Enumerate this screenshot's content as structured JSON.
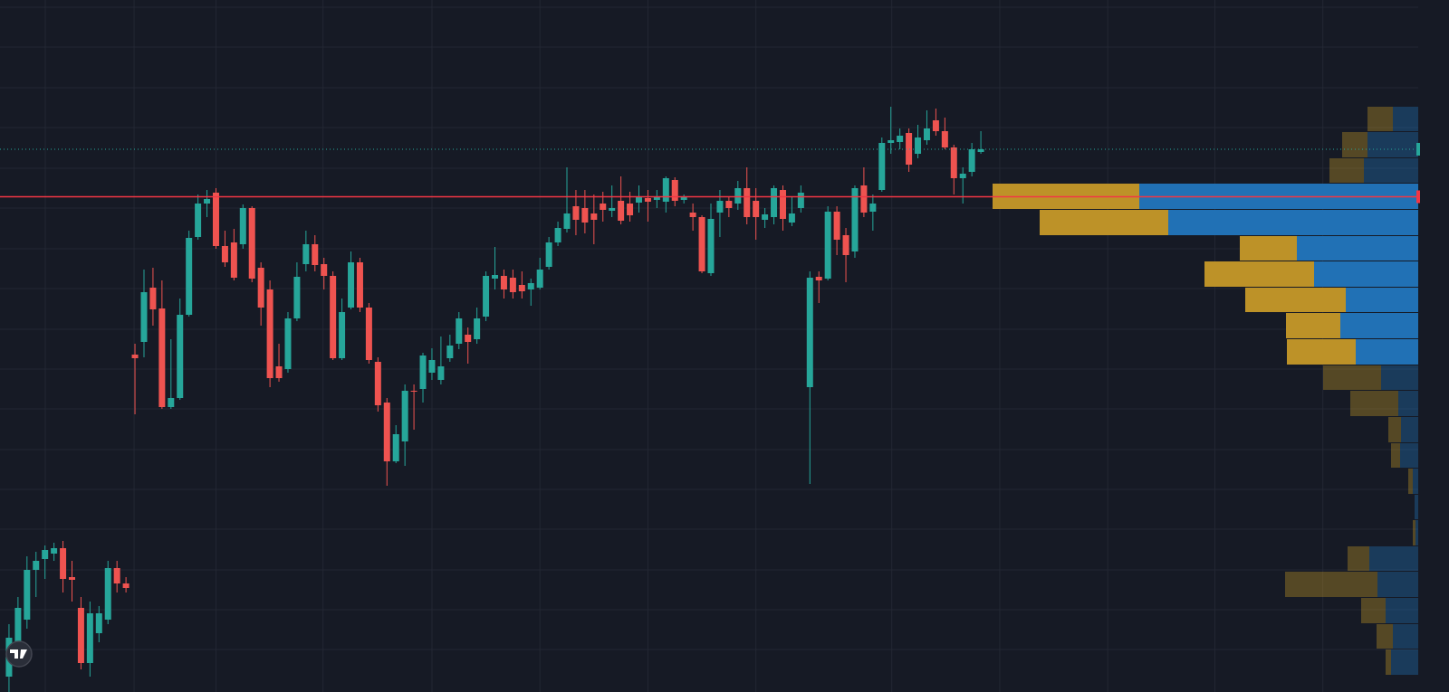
{
  "chart_data": {
    "type": "candlestick",
    "xlim": [
      -1,
      156.6
    ],
    "ylim": [
      0,
      765
    ],
    "x_gridlines": [
      4.03,
      13.9,
      23.0,
      34.9,
      47.0,
      59.0,
      71.0,
      83.0,
      98.1,
      110.1,
      122.1,
      134.0,
      146.0
    ],
    "y_gridlines": [
      47,
      91,
      135,
      180,
      224,
      268,
      313,
      357,
      401,
      446,
      490,
      535,
      579,
      624,
      668,
      713,
      757
    ],
    "up_color": "#26a69a",
    "down_color": "#ef5350",
    "x": [
      0,
      1,
      2,
      3,
      4,
      5,
      6,
      7,
      8,
      9,
      10,
      11,
      12,
      13,
      14,
      15,
      16,
      17,
      18,
      19,
      20,
      21,
      22,
      23,
      24,
      25,
      26,
      27,
      28,
      29,
      30,
      31,
      32,
      33,
      34,
      35,
      36,
      37,
      38,
      39,
      40,
      41,
      42,
      43,
      44,
      45,
      46,
      47,
      48,
      49,
      50,
      51,
      52,
      53,
      54,
      55,
      56,
      57,
      58,
      59,
      60,
      61,
      62,
      63,
      64,
      65,
      66,
      67,
      68,
      69,
      70,
      71,
      72,
      73,
      74,
      75,
      76,
      77,
      78,
      79,
      80,
      81,
      82,
      83,
      84,
      85,
      86,
      87,
      88,
      89,
      90,
      91,
      92,
      93,
      94,
      95,
      96,
      97,
      98,
      99,
      100,
      101,
      102,
      103,
      104,
      105,
      106,
      107,
      108
    ],
    "open": [
      17,
      55,
      80,
      135,
      147,
      153,
      159,
      127,
      93,
      32,
      65,
      80,
      137,
      120,
      373,
      387,
      447,
      424,
      315,
      325,
      417,
      503,
      540,
      552,
      493,
      497,
      495,
      535,
      469,
      445,
      360,
      357,
      413,
      473,
      495,
      473,
      460,
      369,
      425,
      475,
      425,
      365,
      320,
      255,
      277,
      333,
      335,
      353,
      345,
      369,
      385,
      395,
      390,
      415,
      457,
      460,
      458,
      450,
      445,
      447,
      470,
      497,
      512,
      537,
      535,
      529,
      540,
      532,
      543,
      540,
      541,
      546,
      544,
      542,
      566,
      544,
      530,
      525,
      463,
      530,
      543,
      540,
      557,
      543,
      522,
      525,
      555,
      519,
      535,
      337,
      459,
      457,
      531,
      505,
      487,
      560,
      531,
      555,
      607,
      608,
      618,
      595,
      610,
      632,
      620,
      602,
      568,
      575,
      597
    ],
    "high": [
      75,
      105,
      150,
      155,
      162,
      165,
      167,
      145,
      105,
      100,
      95,
      145,
      145,
      127,
      385,
      467,
      469,
      455,
      390,
      435,
      510,
      550,
      555,
      557,
      510,
      512,
      539,
      537,
      475,
      455,
      385,
      420,
      475,
      510,
      505,
      480,
      465,
      435,
      487,
      480,
      430,
      370,
      325,
      295,
      340,
      340,
      375,
      380,
      393,
      395,
      420,
      403,
      425,
      465,
      492,
      467,
      467,
      465,
      457,
      480,
      503,
      520,
      580,
      555,
      555,
      550,
      553,
      560,
      570,
      553,
      560,
      555,
      555,
      570,
      569,
      550,
      540,
      527,
      540,
      555,
      547,
      565,
      580,
      557,
      535,
      560,
      560,
      547,
      560,
      465,
      465,
      537,
      537,
      513,
      560,
      580,
      550,
      613,
      647,
      623,
      623,
      627,
      643,
      645,
      635,
      605,
      580,
      607,
      620
    ],
    "low": [
      0,
      45,
      70,
      105,
      125,
      145,
      110,
      100,
      25,
      17,
      55,
      75,
      110,
      110,
      307,
      370,
      405,
      313,
      313,
      323,
      415,
      500,
      525,
      490,
      470,
      455,
      490,
      453,
      405,
      337,
      343,
      353,
      410,
      465,
      465,
      445,
      367,
      367,
      423,
      420,
      363,
      310,
      228,
      253,
      250,
      290,
      320,
      345,
      340,
      365,
      379,
      363,
      385,
      410,
      445,
      435,
      435,
      435,
      427,
      445,
      467,
      493,
      508,
      505,
      507,
      495,
      520,
      525,
      517,
      520,
      530,
      520,
      535,
      530,
      537,
      540,
      510,
      463,
      460,
      503,
      525,
      533,
      517,
      500,
      513,
      517,
      510,
      515,
      530,
      230,
      430,
      455,
      483,
      453,
      480,
      525,
      510,
      553,
      595,
      600,
      575,
      590,
      605,
      615,
      600,
      550,
      540,
      570,
      595
    ],
    "close": [
      60,
      93,
      135,
      145,
      157,
      159,
      125,
      124,
      32,
      87,
      87,
      137,
      120,
      115,
      369,
      442,
      423,
      315,
      325,
      417,
      502,
      540,
      545,
      493,
      475,
      458,
      535,
      457,
      425,
      347,
      347,
      413,
      459,
      495,
      472,
      460,
      369,
      420,
      475,
      425,
      367,
      317,
      255,
      285,
      333,
      332,
      372,
      367,
      360,
      383,
      413,
      387,
      413,
      460,
      461,
      445,
      442,
      443,
      452,
      467,
      497,
      513,
      529,
      522,
      519,
      522,
      533,
      535,
      521,
      527,
      547,
      542,
      547,
      568,
      543,
      547,
      525,
      465,
      523,
      543,
      535,
      557,
      525,
      525,
      528,
      557,
      523,
      529,
      552,
      458,
      455,
      531,
      500,
      483,
      557,
      530,
      540,
      607,
      610,
      615,
      583,
      613,
      623,
      620,
      602,
      568,
      573,
      600,
      600
    ],
    "last_price_color": "#26a69a",
    "poc_color": "#f23645",
    "profile": {
      "bins": [
        18,
        47,
        75,
        104,
        133,
        161,
        190,
        218,
        247,
        275,
        304,
        333,
        361,
        390,
        419,
        447,
        476,
        504,
        533,
        562,
        590,
        619,
        647
      ],
      "up_volume": [
        6,
        18,
        27,
        102,
        24,
        3,
        0,
        5,
        10,
        14,
        53,
        64,
        76,
        60,
        111,
        121,
        63,
        142,
        162,
        38,
        28,
        28
      ],
      "down_volume": [
        30,
        28,
        36,
        45,
        54,
        3,
        4,
        6,
        20,
        19,
        22,
        41,
        69,
        86,
        80,
        115,
        134,
        276,
        308,
        60,
        56,
        28
      ],
      "xlim": [
        0,
        470
      ],
      "value_area": [
        361,
        562
      ],
      "up_color": "#bd9228",
      "down_color": "#2171b5"
    }
  }
}
